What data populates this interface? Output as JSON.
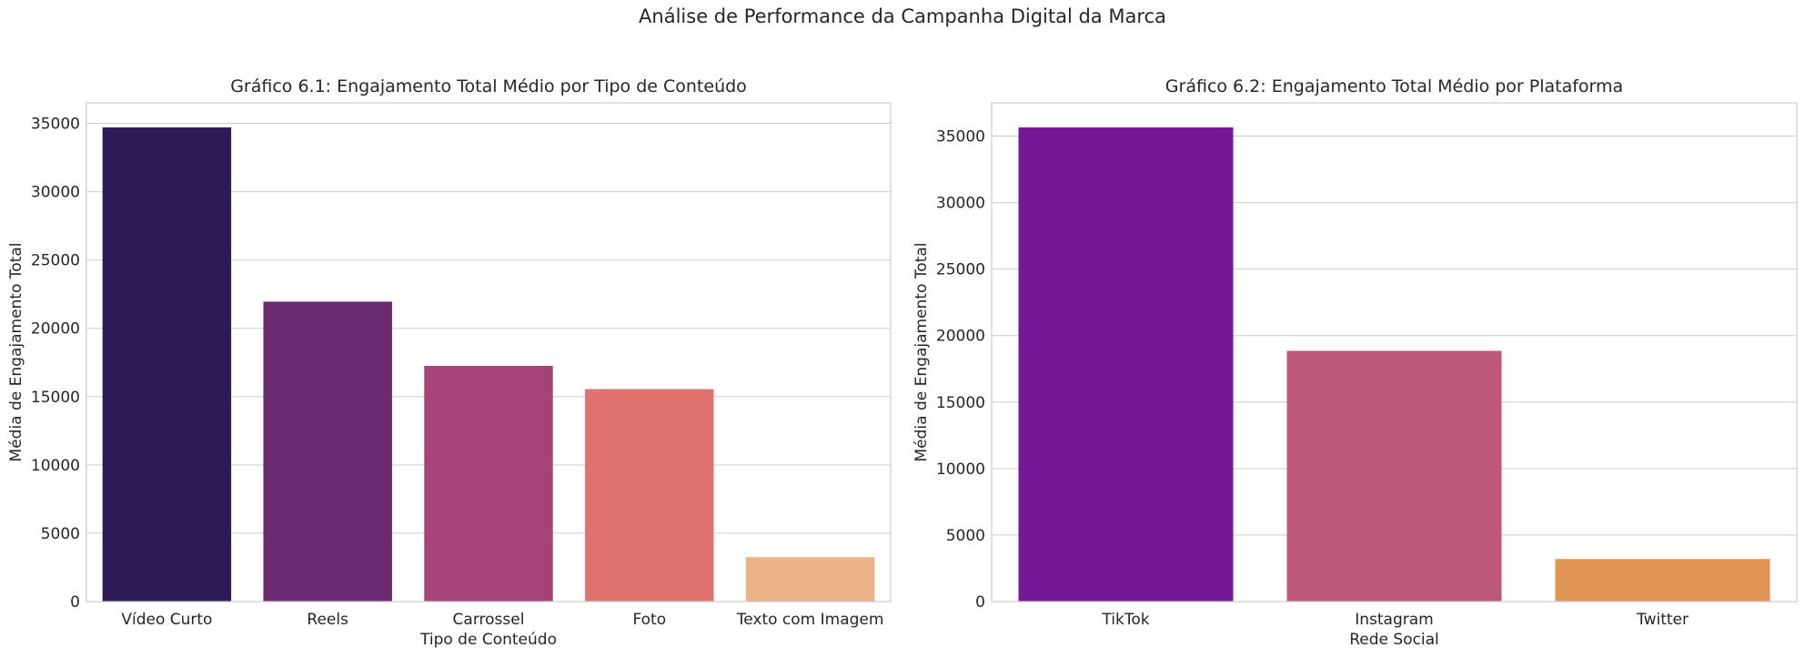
{
  "figure": {
    "suptitle": "Análise de Performance da Campanha Digital da Marca"
  },
  "chart_data": [
    {
      "type": "bar",
      "title": "Gráfico 6.1: Engajamento Total Médio por Tipo de Conteúdo",
      "xlabel": "Tipo de Conteúdo",
      "ylabel": "Média de Engajamento Total",
      "categories": [
        "Vídeo Curto",
        "Reels",
        "Carrossel",
        "Foto",
        "Texto com Imagem"
      ],
      "values": [
        34700,
        21950,
        17250,
        15550,
        3250
      ],
      "colors": [
        "#2e1a54",
        "#6a2b72",
        "#a54577",
        "#e0736f",
        "#eeb288"
      ],
      "ylim": [
        0,
        36500
      ],
      "yticks": [
        0,
        5000,
        10000,
        15000,
        20000,
        25000,
        30000,
        35000
      ],
      "grid": true,
      "legend": "none"
    },
    {
      "type": "bar",
      "title": "Gráfico 6.2: Engajamento Total Médio por Plataforma",
      "xlabel": "Rede Social",
      "ylabel": "Média de Engajamento Total",
      "categories": [
        "TikTok",
        "Instagram",
        "Twitter"
      ],
      "values": [
        35650,
        18850,
        3200
      ],
      "colors": [
        "#741897",
        "#bd5878",
        "#e09553"
      ],
      "ylim": [
        0,
        37500
      ],
      "yticks": [
        0,
        5000,
        10000,
        15000,
        20000,
        25000,
        30000,
        35000
      ],
      "grid": true,
      "legend": "none"
    }
  ]
}
